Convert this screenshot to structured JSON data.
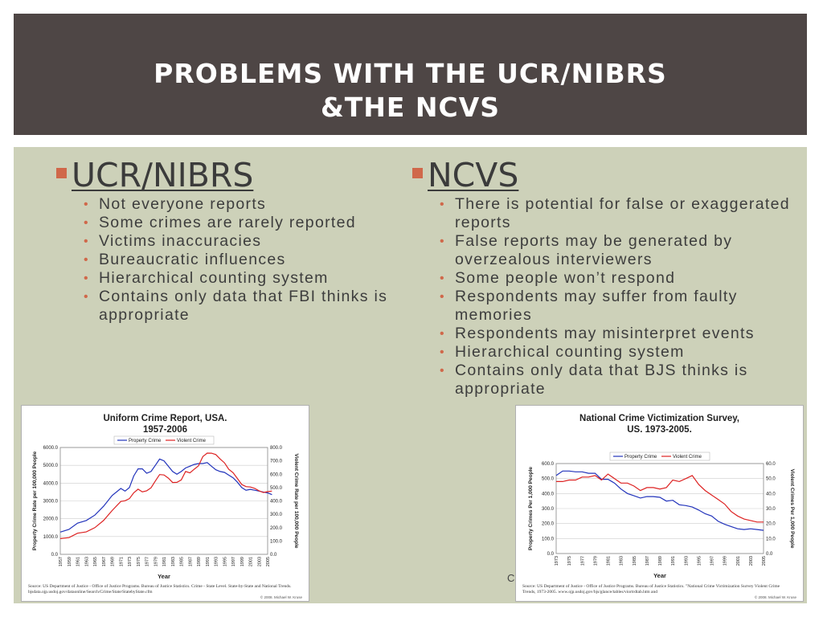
{
  "title_lines": [
    "PROBLEMS WITH THE UCR/NIBRS",
    "&THE NCVS"
  ],
  "left": {
    "heading": "UCR/NIBRS",
    "bullets": [
      "Not everyone reports",
      "Some crimes are rarely reported",
      "Victims inaccuracies",
      "Bureaucratic influences",
      "Hierarchical counting system",
      "Contains only data that FBI thinks is appropriate"
    ]
  },
  "right": {
    "heading": "NCVS",
    "bullets": [
      "There is potential for false or exaggerated reports",
      "False reports may be generated by overzealous interviewers",
      "Some people won’t respond",
      "Respondents may suffer from faulty memories",
      "Respondents may misinterpret events",
      "Hierarchical counting system",
      "Contains only data that BJS thinks is appropriate"
    ]
  },
  "stray_char": "C",
  "colors": {
    "header": "#4e4645",
    "content": "#cdd1b9",
    "bullet": "#d0684a",
    "property": "#2233bb",
    "violent": "#dd2222"
  },
  "chart_data": [
    {
      "type": "line",
      "title": "Uniform Crime Report, USA.",
      "subtitle": "1957-2006",
      "xlabel": "Year",
      "ylabel": "Property Crime Rate per 100,000 People",
      "y2label": "Violent Crime Rate per 100,000 People",
      "ylim": [
        0,
        6000
      ],
      "y2lim": [
        0,
        800
      ],
      "yticks": [
        "0.0",
        "1000.0",
        "2000.0",
        "3000.0",
        "4000.0",
        "5000.0",
        "6000.0"
      ],
      "y2ticks": [
        "0.0",
        "100.0",
        "200.0",
        "300.0",
        "400.0",
        "500.0",
        "600.0",
        "700.0",
        "800.0"
      ],
      "xticks": [
        "1957",
        "1959",
        "1961",
        "1963",
        "1965",
        "1967",
        "1969",
        "1971",
        "1973",
        "1975",
        "1977",
        "1979",
        "1981",
        "1983",
        "1985",
        "1987",
        "1989",
        "1991",
        "1993",
        "1995",
        "1997",
        "1999",
        "2001",
        "2003",
        "2005"
      ],
      "legend": [
        "Property Crime",
        "Violent Crime"
      ],
      "legend_position": "top-center",
      "source": "Source: US Department of Justice - Office of Justice Programs. Bureau of Justice Statistics. Crime - State Level. State-by-State and National Trends. bjsdata.ojp.usdoj.gov/dataonline/Search/Crime/State/StatebyState.cfm",
      "copyright": "© 2008. Michael W. Kruse",
      "series": [
        {
          "name": "Property Crime",
          "axis": "left",
          "color": "#2233bb",
          "x": [
            1957,
            1959,
            1961,
            1963,
            1965,
            1967,
            1969,
            1971,
            1972,
            1973,
            1974,
            1975,
            1976,
            1977,
            1978,
            1979,
            1980,
            1981,
            1982,
            1983,
            1984,
            1985,
            1986,
            1987,
            1988,
            1989,
            1990,
            1991,
            1992,
            1993,
            1994,
            1995,
            1996,
            1997,
            1998,
            1999,
            2000,
            2001,
            2002,
            2003,
            2004,
            2005,
            2006
          ],
          "y": [
            1250,
            1400,
            1750,
            1900,
            2200,
            2700,
            3300,
            3700,
            3550,
            3750,
            4400,
            4800,
            4800,
            4550,
            4650,
            5000,
            5350,
            5250,
            4950,
            4650,
            4500,
            4650,
            4850,
            4950,
            5050,
            5100,
            5100,
            5150,
            4950,
            4750,
            4650,
            4600,
            4450,
            4300,
            4050,
            3750,
            3600,
            3650,
            3600,
            3550,
            3500,
            3450,
            3350
          ]
        },
        {
          "name": "Violent Crime",
          "axis": "right",
          "color": "#dd2222",
          "x": [
            1957,
            1959,
            1961,
            1963,
            1965,
            1967,
            1969,
            1971,
            1972,
            1973,
            1974,
            1975,
            1976,
            1977,
            1978,
            1979,
            1980,
            1981,
            1982,
            1983,
            1984,
            1985,
            1986,
            1987,
            1988,
            1989,
            1990,
            1991,
            1992,
            1993,
            1994,
            1995,
            1996,
            1997,
            1998,
            1999,
            2000,
            2001,
            2002,
            2003,
            2004,
            2005,
            2006
          ],
          "y": [
            118,
            125,
            158,
            168,
            200,
            253,
            328,
            396,
            401,
            417,
            461,
            488,
            468,
            476,
            498,
            549,
            597,
            594,
            571,
            538,
            539,
            557,
            620,
            610,
            637,
            663,
            732,
            758,
            757,
            747,
            714,
            685,
            637,
            611,
            568,
            523,
            507,
            504,
            494,
            476,
            463,
            469,
            474
          ]
        }
      ]
    },
    {
      "type": "line",
      "title": "National Crime Victimization Survey,",
      "subtitle": "US. 1973-2005.",
      "xlabel": "Year",
      "ylabel": "Property Crimes Per 1,000 People",
      "y2label": "Violent Crimes Per 1,000 People",
      "ylim": [
        0,
        600
      ],
      "y2lim": [
        0,
        60
      ],
      "yticks": [
        "0.0",
        "100.0",
        "200.0",
        "300.0",
        "400.0",
        "500.0",
        "600.0"
      ],
      "y2ticks": [
        "0.0",
        "10.0",
        "20.0",
        "30.0",
        "40.0",
        "50.0",
        "60.0"
      ],
      "xticks": [
        "1973",
        "1975",
        "1977",
        "1979",
        "1981",
        "1983",
        "1985",
        "1987",
        "1989",
        "1991",
        "1993",
        "1995",
        "1997",
        "1999",
        "2001",
        "2003",
        "2005"
      ],
      "legend": [
        "Property Crime",
        "Violent Crime"
      ],
      "legend_position": "top-center",
      "source": "Source: US Department of Justice - Office of Justice Programs. Bureau of Justice Statistics. \"National Crime Victimization Survey Violent Crime Trends, 1973-2005. www.ojp.usdoj.gov/bjs/glance/tables/viortrdtab.htm and",
      "copyright": "© 2008. Michael W. Kruse",
      "series": [
        {
          "name": "Property Crime",
          "axis": "left",
          "color": "#2233bb",
          "x": [
            1973,
            1974,
            1975,
            1976,
            1977,
            1978,
            1979,
            1980,
            1981,
            1982,
            1983,
            1984,
            1985,
            1986,
            1987,
            1988,
            1989,
            1990,
            1991,
            1992,
            1993,
            1994,
            1995,
            1996,
            1997,
            1998,
            1999,
            2000,
            2001,
            2002,
            2003,
            2004,
            2005
          ],
          "y": [
            520,
            550,
            550,
            545,
            545,
            535,
            535,
            495,
            495,
            470,
            430,
            400,
            385,
            370,
            380,
            380,
            375,
            350,
            355,
            325,
            320,
            310,
            290,
            265,
            250,
            215,
            195,
            180,
            165,
            160,
            165,
            160,
            155
          ]
        },
        {
          "name": "Violent Crime",
          "axis": "right",
          "color": "#dd2222",
          "x": [
            1973,
            1974,
            1975,
            1976,
            1977,
            1978,
            1979,
            1980,
            1981,
            1982,
            1983,
            1984,
            1985,
            1986,
            1987,
            1988,
            1989,
            1990,
            1991,
            1992,
            1993,
            1994,
            1995,
            1996,
            1997,
            1998,
            1999,
            2000,
            2001,
            2002,
            2003,
            2004,
            2005
          ],
          "y": [
            48,
            48,
            49,
            49,
            51,
            51,
            52,
            49,
            53,
            50,
            47,
            47,
            45,
            42,
            44,
            44,
            43,
            44,
            49,
            48,
            50,
            52,
            46,
            42,
            39,
            36,
            33,
            28,
            25,
            23,
            22,
            21,
            21
          ]
        }
      ]
    }
  ]
}
